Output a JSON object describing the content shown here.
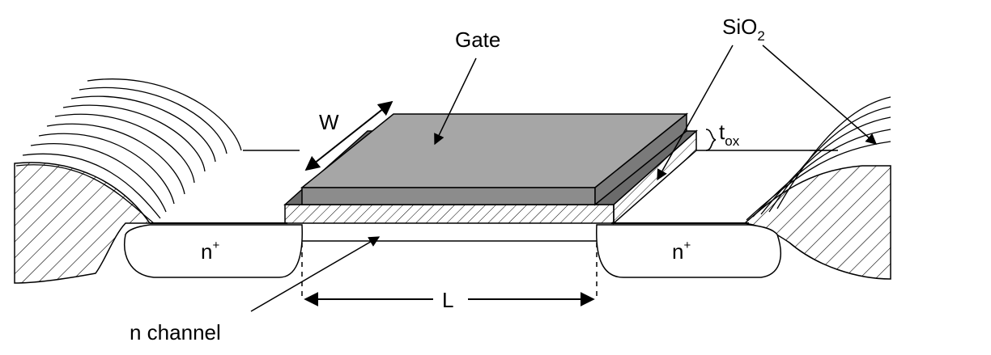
{
  "labels": {
    "gate": "Gate",
    "oxide_base": "SiO",
    "oxide_sub": "2",
    "width": "W",
    "thickness_base": "t",
    "thickness_sub": "ox",
    "length": "L",
    "channel": "n channel",
    "source_base": "n",
    "source_sup": "+",
    "drain_base": "n",
    "drain_sup": "+"
  },
  "colors": {
    "gate_top": "#a6a6a6",
    "gate_side": "#8c8c8c",
    "oxide_dark": "#6b6b6b",
    "line": "#000000"
  }
}
